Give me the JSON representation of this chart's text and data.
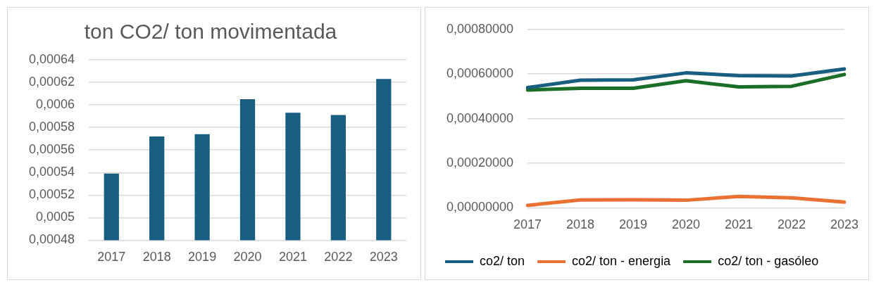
{
  "chart_data": [
    {
      "type": "bar",
      "title": "ton CO2/ ton movimentada",
      "categories": [
        "2017",
        "2018",
        "2019",
        "2020",
        "2021",
        "2022",
        "2023"
      ],
      "values": [
        0.000539,
        0.000572,
        0.000574,
        0.000605,
        0.000593,
        0.000591,
        0.000623
      ],
      "color": "#175e80",
      "ylim": [
        0.00048,
        0.00064
      ],
      "yticks": [
        {
          "value": 0.00048,
          "label": "0,00048"
        },
        {
          "value": 0.0005,
          "label": "0,0005"
        },
        {
          "value": 0.00052,
          "label": "0,00052"
        },
        {
          "value": 0.00054,
          "label": "0,00054"
        },
        {
          "value": 0.00056,
          "label": "0,00056"
        },
        {
          "value": 0.00058,
          "label": "0,00058"
        },
        {
          "value": 0.0006,
          "label": "0,0006"
        },
        {
          "value": 0.00062,
          "label": "0,00062"
        },
        {
          "value": 0.00064,
          "label": "0,00064"
        }
      ],
      "grid": "y",
      "legend": false
    },
    {
      "type": "line",
      "categories": [
        "2017",
        "2018",
        "2019",
        "2020",
        "2021",
        "2022",
        "2023"
      ],
      "series": [
        {
          "name": "co2/ ton",
          "color": "#175e80",
          "values": [
            0.000539,
            0.000572,
            0.000574,
            0.000605,
            0.000593,
            0.000591,
            0.000623
          ]
        },
        {
          "name": "co2/ ton - energia",
          "color": "#e97132",
          "values": [
            1.1e-05,
            3.5e-05,
            3.6e-05,
            3.4e-05,
            5.1e-05,
            4.5e-05,
            2.6e-05
          ]
        },
        {
          "name": "co2/ ton - gasóleo",
          "color": "#1a6e26",
          "values": [
            0.000528,
            0.000536,
            0.000536,
            0.00057,
            0.000542,
            0.000545,
            0.000598
          ]
        }
      ],
      "ylim": [
        0,
        0.0008
      ],
      "yticks": [
        {
          "value": 0,
          "label": "0,00000000"
        },
        {
          "value": 0.0002,
          "label": "0,00020000"
        },
        {
          "value": 0.0004,
          "label": "0,00040000"
        },
        {
          "value": 0.0006,
          "label": "0,00060000"
        },
        {
          "value": 0.0008,
          "label": "0,00080000"
        }
      ],
      "grid": "y",
      "legend": "bottom",
      "marker": "none",
      "line_style": "solid"
    }
  ]
}
